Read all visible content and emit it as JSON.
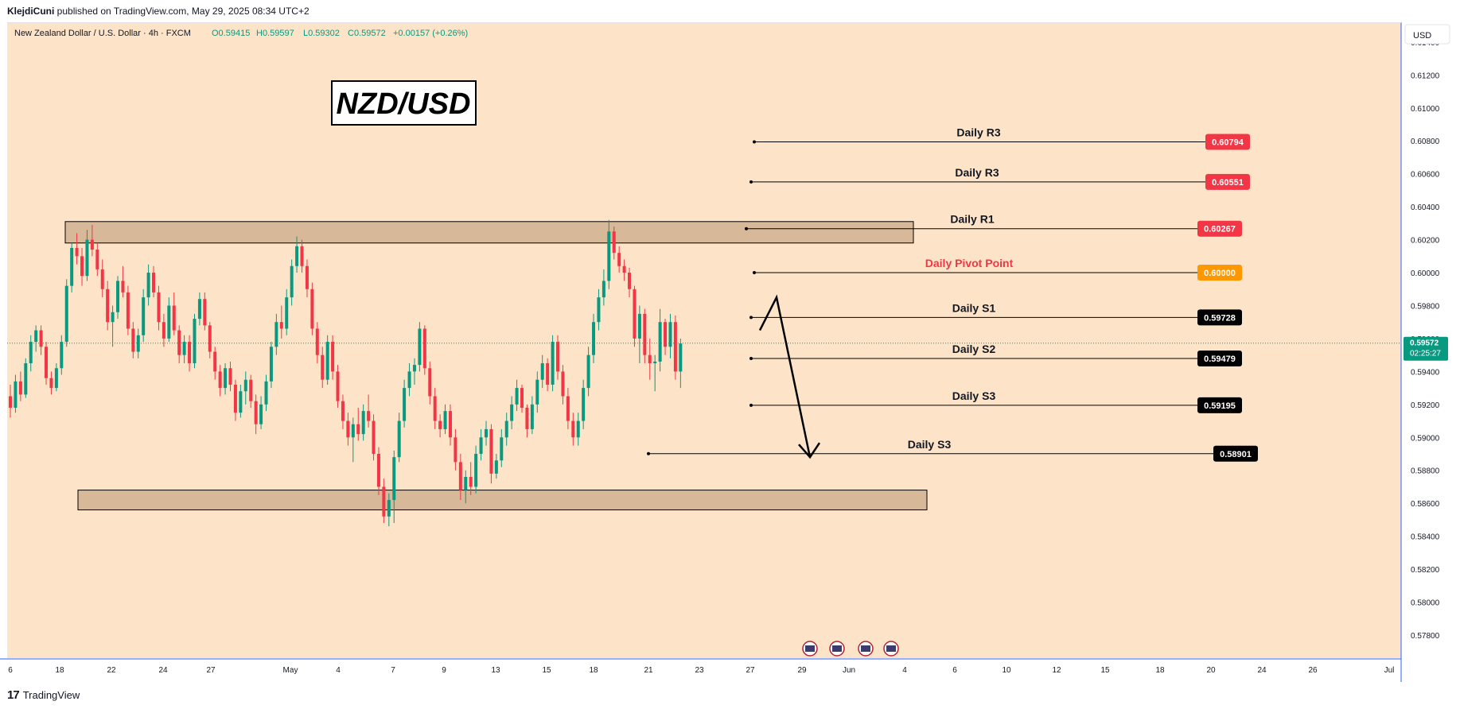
{
  "header": {
    "author": "KlejdiCuni",
    "published_text": " published on TradingView.com, May 29, 2025 08:34 UTC+2"
  },
  "footer": {
    "logo_mark": "17",
    "brand": "TradingView"
  },
  "chart_data": {
    "type": "candlestick",
    "symbol_line": "New Zealand Dollar / U.S. Dollar · 4h · FXCM",
    "ohlc": {
      "open": "O0.59415",
      "high": "H0.59597",
      "low": "L0.59302",
      "close": "C0.59572",
      "change": "+0.00157 (+0.26%)"
    },
    "currency_label": "USD",
    "title_box": "NZD/USD",
    "ylim": [
      0.5766,
      0.6152
    ],
    "y_ticks": [
      0.578,
      0.58,
      0.582,
      0.584,
      0.586,
      0.588,
      0.59,
      0.592,
      0.594,
      0.596,
      0.598,
      0.6,
      0.602,
      0.604,
      0.606,
      0.608,
      0.61,
      0.612,
      0.614
    ],
    "y_tick_labels": [
      "0.57800",
      "0.58000",
      "0.58200",
      "0.58400",
      "0.58600",
      "0.58800",
      "0.59000",
      "0.59200",
      "0.59400",
      "0.59600",
      "0.59800",
      "0.60000",
      "0.60200",
      "0.60400",
      "0.60600",
      "0.60800",
      "0.61000",
      "0.61200",
      "0.61400"
    ],
    "x_labels": [
      "6",
      "18",
      "22",
      "24",
      "27",
      "May",
      "4",
      "7",
      "9",
      "13",
      "15",
      "18",
      "21",
      "23",
      "27",
      "29",
      "Jun",
      "4",
      "6",
      "10",
      "12",
      "15",
      "18",
      "20",
      "24",
      "26",
      "Jul"
    ],
    "last_price": "0.59572",
    "last_price_value": 0.59572,
    "countdown": "02:25:27",
    "levels": [
      {
        "label": "Daily R3",
        "value": 0.60794,
        "value_text": "0.60794",
        "color": "#f23645"
      },
      {
        "label": "Daily R3",
        "value": 0.60551,
        "value_text": "0.60551",
        "color": "#f23645"
      },
      {
        "label": "Daily R1",
        "value": 0.60267,
        "value_text": "0.60267",
        "color": "#f23645"
      },
      {
        "label": "Daily Pivot Point",
        "value": 0.6,
        "value_text": "0.60000",
        "color": "#ff9800"
      },
      {
        "label": "Daily S1",
        "value": 0.59728,
        "value_text": "0.59728",
        "color": "#000000"
      },
      {
        "label": "Daily S2",
        "value": 0.59479,
        "value_text": "0.59479",
        "color": "#000000"
      },
      {
        "label": "Daily S3",
        "value": 0.59195,
        "value_text": "0.59195",
        "color": "#000000"
      },
      {
        "label": "Daily S3",
        "value": 0.58901,
        "value_text": "0.58901",
        "color": "#000000"
      }
    ],
    "zones": [
      {
        "name": "resistance-zone",
        "top": 0.6031,
        "bottom": 0.6018
      },
      {
        "name": "support-zone",
        "top": 0.5868,
        "bottom": 0.5856
      }
    ],
    "candles": [
      [
        0.5925,
        0.5932,
        0.5912,
        0.5918
      ],
      [
        0.5918,
        0.5938,
        0.5915,
        0.5934
      ],
      [
        0.5934,
        0.594,
        0.5922,
        0.5926
      ],
      [
        0.5926,
        0.5948,
        0.5924,
        0.5945
      ],
      [
        0.5945,
        0.5962,
        0.594,
        0.5958
      ],
      [
        0.5958,
        0.5968,
        0.5952,
        0.5965
      ],
      [
        0.5965,
        0.5968,
        0.595,
        0.5955
      ],
      [
        0.5955,
        0.5958,
        0.5932,
        0.5936
      ],
      [
        0.5936,
        0.594,
        0.5926,
        0.593
      ],
      [
        0.593,
        0.5945,
        0.5928,
        0.5942
      ],
      [
        0.5942,
        0.5962,
        0.5938,
        0.5958
      ],
      [
        0.5958,
        0.5996,
        0.5955,
        0.5992
      ],
      [
        0.5992,
        0.6018,
        0.5988,
        0.6015
      ],
      [
        0.6015,
        0.6024,
        0.6005,
        0.601
      ],
      [
        0.601,
        0.6015,
        0.5992,
        0.5998
      ],
      [
        0.5998,
        0.6026,
        0.5995,
        0.602
      ],
      [
        0.602,
        0.6029,
        0.601,
        0.6014
      ],
      [
        0.6014,
        0.6018,
        0.5998,
        0.6002
      ],
      [
        0.6002,
        0.6008,
        0.5985,
        0.599
      ],
      [
        0.599,
        0.5995,
        0.5965,
        0.597
      ],
      [
        0.597,
        0.598,
        0.5955,
        0.5976
      ],
      [
        0.5976,
        0.5998,
        0.5972,
        0.5995
      ],
      [
        0.5995,
        0.6004,
        0.5985,
        0.5988
      ],
      [
        0.5988,
        0.5992,
        0.5962,
        0.5966
      ],
      [
        0.5966,
        0.597,
        0.5948,
        0.5952
      ],
      [
        0.5952,
        0.5966,
        0.5948,
        0.5962
      ],
      [
        0.5962,
        0.599,
        0.5958,
        0.5985
      ],
      [
        0.5985,
        0.6005,
        0.598,
        0.6
      ],
      [
        0.6,
        0.6004,
        0.5985,
        0.5988
      ],
      [
        0.5988,
        0.5992,
        0.5965,
        0.597
      ],
      [
        0.597,
        0.5975,
        0.5955,
        0.596
      ],
      [
        0.596,
        0.5985,
        0.5958,
        0.598
      ],
      [
        0.598,
        0.5988,
        0.5962,
        0.5965
      ],
      [
        0.5965,
        0.5968,
        0.5945,
        0.595
      ],
      [
        0.595,
        0.5962,
        0.5945,
        0.5958
      ],
      [
        0.5958,
        0.5962,
        0.594,
        0.5945
      ],
      [
        0.5945,
        0.5975,
        0.5942,
        0.5972
      ],
      [
        0.5972,
        0.5988,
        0.5968,
        0.5984
      ],
      [
        0.5984,
        0.5988,
        0.5965,
        0.5968
      ],
      [
        0.5968,
        0.597,
        0.5948,
        0.5952
      ],
      [
        0.5952,
        0.5955,
        0.5935,
        0.594
      ],
      [
        0.594,
        0.5944,
        0.5925,
        0.593
      ],
      [
        0.593,
        0.5945,
        0.5926,
        0.5942
      ],
      [
        0.5942,
        0.5946,
        0.5928,
        0.5932
      ],
      [
        0.5932,
        0.5935,
        0.591,
        0.5915
      ],
      [
        0.5915,
        0.5932,
        0.5912,
        0.5928
      ],
      [
        0.5928,
        0.594,
        0.592,
        0.5935
      ],
      [
        0.5935,
        0.5938,
        0.5918,
        0.5922
      ],
      [
        0.5922,
        0.5926,
        0.5902,
        0.5908
      ],
      [
        0.5908,
        0.5925,
        0.5905,
        0.592
      ],
      [
        0.592,
        0.5938,
        0.5916,
        0.5934
      ],
      [
        0.5934,
        0.5958,
        0.593,
        0.5955
      ],
      [
        0.5955,
        0.5975,
        0.595,
        0.597
      ],
      [
        0.597,
        0.598,
        0.596,
        0.5966
      ],
      [
        0.5966,
        0.599,
        0.5962,
        0.5985
      ],
      [
        0.5985,
        0.6008,
        0.598,
        0.6004
      ],
      [
        0.6004,
        0.6022,
        0.6,
        0.6016
      ],
      [
        0.6016,
        0.602,
        0.6,
        0.6004
      ],
      [
        0.6004,
        0.6008,
        0.5985,
        0.599
      ],
      [
        0.599,
        0.5994,
        0.5962,
        0.5966
      ],
      [
        0.5966,
        0.597,
        0.5945,
        0.595
      ],
      [
        0.595,
        0.5955,
        0.593,
        0.5935
      ],
      [
        0.5935,
        0.5962,
        0.5932,
        0.5958
      ],
      [
        0.5958,
        0.5962,
        0.5935,
        0.594
      ],
      [
        0.594,
        0.5944,
        0.5918,
        0.5922
      ],
      [
        0.5922,
        0.5926,
        0.5905,
        0.591
      ],
      [
        0.591,
        0.5915,
        0.5895,
        0.59
      ],
      [
        0.59,
        0.5912,
        0.5885,
        0.5908
      ],
      [
        0.5908,
        0.5918,
        0.5898,
        0.5902
      ],
      [
        0.5902,
        0.592,
        0.5898,
        0.5916
      ],
      [
        0.5916,
        0.5926,
        0.5906,
        0.591
      ],
      [
        0.591,
        0.5914,
        0.5886,
        0.589
      ],
      [
        0.589,
        0.5894,
        0.5865,
        0.587
      ],
      [
        0.587,
        0.5875,
        0.5848,
        0.5852
      ],
      [
        0.5852,
        0.5866,
        0.5846,
        0.5862
      ],
      [
        0.5862,
        0.5892,
        0.5848,
        0.5888
      ],
      [
        0.5888,
        0.5915,
        0.5885,
        0.591
      ],
      [
        0.591,
        0.5935,
        0.5906,
        0.593
      ],
      [
        0.593,
        0.5945,
        0.5925,
        0.594
      ],
      [
        0.594,
        0.5948,
        0.5932,
        0.5944
      ],
      [
        0.5944,
        0.597,
        0.594,
        0.5966
      ],
      [
        0.5966,
        0.5968,
        0.5938,
        0.5942
      ],
      [
        0.5942,
        0.5946,
        0.592,
        0.5925
      ],
      [
        0.5925,
        0.593,
        0.5905,
        0.591
      ],
      [
        0.591,
        0.5914,
        0.59,
        0.5905
      ],
      [
        0.5905,
        0.592,
        0.5902,
        0.5916
      ],
      [
        0.5916,
        0.592,
        0.5895,
        0.59
      ],
      [
        0.59,
        0.5905,
        0.588,
        0.5885
      ],
      [
        0.5885,
        0.589,
        0.5862,
        0.5868
      ],
      [
        0.5868,
        0.588,
        0.586,
        0.5876
      ],
      [
        0.5876,
        0.5885,
        0.5865,
        0.587
      ],
      [
        0.587,
        0.5895,
        0.5866,
        0.589
      ],
      [
        0.589,
        0.5905,
        0.5886,
        0.59
      ],
      [
        0.59,
        0.591,
        0.5895,
        0.5905
      ],
      [
        0.5905,
        0.5908,
        0.5872,
        0.5878
      ],
      [
        0.5878,
        0.589,
        0.5875,
        0.5886
      ],
      [
        0.5886,
        0.5905,
        0.5882,
        0.59
      ],
      [
        0.59,
        0.5915,
        0.5895,
        0.591
      ],
      [
        0.591,
        0.5925,
        0.5905,
        0.592
      ],
      [
        0.592,
        0.5935,
        0.5916,
        0.593
      ],
      [
        0.593,
        0.5932,
        0.5915,
        0.5918
      ],
      [
        0.5918,
        0.592,
        0.59,
        0.5905
      ],
      [
        0.5905,
        0.5925,
        0.5902,
        0.592
      ],
      [
        0.592,
        0.594,
        0.5915,
        0.5935
      ],
      [
        0.5935,
        0.595,
        0.593,
        0.5945
      ],
      [
        0.5945,
        0.5948,
        0.5928,
        0.5932
      ],
      [
        0.5932,
        0.5962,
        0.5928,
        0.5958
      ],
      [
        0.5958,
        0.5962,
        0.5935,
        0.594
      ],
      [
        0.594,
        0.5944,
        0.592,
        0.5925
      ],
      [
        0.5925,
        0.593,
        0.5905,
        0.591
      ],
      [
        0.591,
        0.5915,
        0.5895,
        0.59
      ],
      [
        0.59,
        0.5915,
        0.5895,
        0.591
      ],
      [
        0.591,
        0.5935,
        0.5905,
        0.593
      ],
      [
        0.593,
        0.5955,
        0.5925,
        0.595
      ],
      [
        0.595,
        0.5975,
        0.5945,
        0.597
      ],
      [
        0.597,
        0.599,
        0.5965,
        0.5985
      ],
      [
        0.5985,
        0.6002,
        0.598,
        0.5995
      ],
      [
        0.5995,
        0.6032,
        0.599,
        0.6025
      ],
      [
        0.6025,
        0.6028,
        0.6008,
        0.6012
      ],
      [
        0.6012,
        0.6016,
        0.6,
        0.6004
      ],
      [
        0.6004,
        0.6008,
        0.5995,
        0.6
      ],
      [
        0.6,
        0.6003,
        0.5985,
        0.599
      ],
      [
        0.599,
        0.5992,
        0.5955,
        0.596
      ],
      [
        0.596,
        0.598,
        0.5945,
        0.5975
      ],
      [
        0.5975,
        0.5978,
        0.5945,
        0.595
      ],
      [
        0.595,
        0.596,
        0.5935,
        0.5945
      ],
      [
        0.5945,
        0.595,
        0.5928,
        0.5946
      ],
      [
        0.5946,
        0.5978,
        0.594,
        0.597
      ],
      [
        0.597,
        0.5972,
        0.595,
        0.5955
      ],
      [
        0.5955,
        0.5975,
        0.5948,
        0.597
      ],
      [
        0.597,
        0.5974,
        0.5935,
        0.594
      ],
      [
        0.594,
        0.596,
        0.593,
        0.5957
      ]
    ],
    "arrow": {
      "points": [
        [
          0.5965,
          0.5975
        ],
        [
          0.5985,
          0.5985
        ],
        [
          0.5888,
          0.5892
        ]
      ]
    }
  }
}
